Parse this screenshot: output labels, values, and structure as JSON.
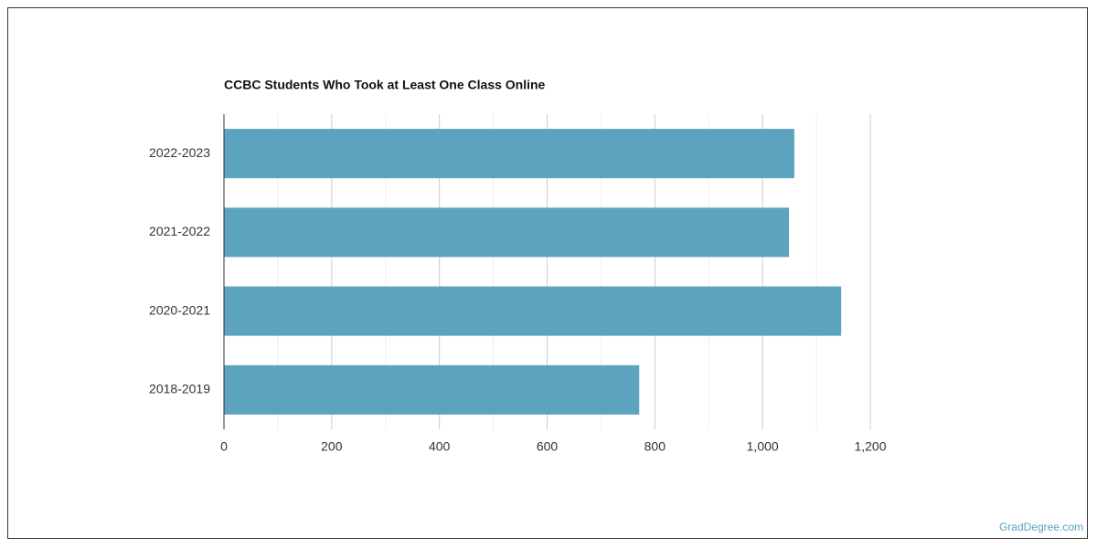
{
  "chart_data": {
    "type": "hbar",
    "title": "CCBC Students Who Took at Least One Class Online",
    "categories": [
      "2022-2023",
      "2021-2022",
      "2020-2021",
      "2018-2019"
    ],
    "values": [
      1059,
      1049,
      1146,
      771
    ],
    "color": "#5ba3be",
    "xlim": [
      0,
      1200
    ],
    "xticks": [
      0,
      200,
      400,
      600,
      800,
      {
        "value": 1000,
        "label": "1,000"
      },
      {
        "value": 1200,
        "label": "1,200"
      }
    ],
    "xminorticks": [
      100,
      300,
      500,
      700,
      900,
      1100
    ],
    "grid": true
  },
  "footer": {
    "source": "GradDegree.com"
  }
}
